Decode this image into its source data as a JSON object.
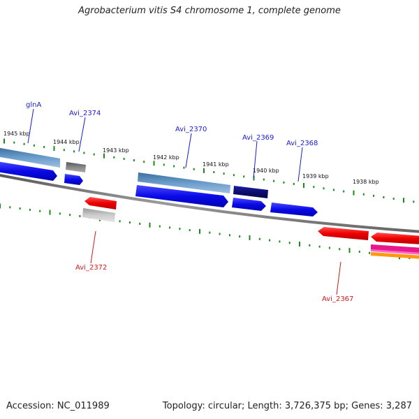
{
  "title": "Agrobacterium vitis S4 chromosome 1, complete genome",
  "accession": "Accession: NC_011989",
  "summary": "Topology: circular; Length: 3,726,375 bp; Genes: 3,287",
  "ticks": [
    "1945 kbp",
    "1944 kbp",
    "1943 kbp",
    "1942 kbp",
    "1941 kbp",
    "1940 kbp",
    "1939 kbp",
    "1938 kbp"
  ],
  "genes_forward": [
    "glnA",
    "Avi_2374",
    "Avi_2370",
    "Avi_2369",
    "Avi_2368"
  ],
  "genes_reverse": [
    "Avi_2372",
    "Avi_2367"
  ],
  "colors": {
    "cds": "#1010ee",
    "gene": "#4f86b8",
    "reverse": "#ee1010",
    "trna": "#6a6a6a",
    "rrna": "#10106e",
    "tick": "#1a8a1a",
    "backbone": "#7f7f7f"
  }
}
